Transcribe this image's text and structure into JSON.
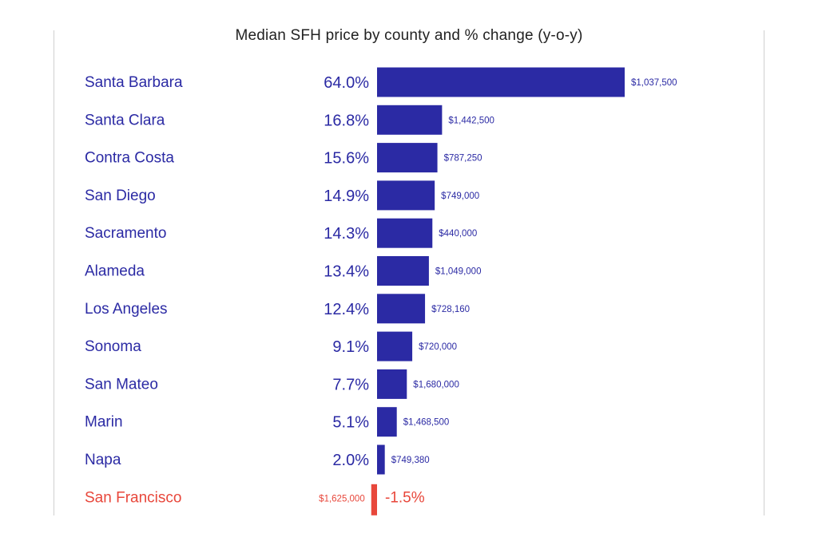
{
  "colors": {
    "positive": "#2b2aa4",
    "negative": "#e8473b",
    "title": "#222222",
    "frame": "#cfcfcf"
  },
  "chart_data": {
    "type": "bar",
    "orientation": "horizontal",
    "title": "Median SFH price by county and % change (y-o-y)",
    "categories": [
      "Santa Barbara",
      "Santa Clara",
      "Contra Costa",
      "San Diego",
      "Sacramento",
      "Alameda",
      "Los Angeles",
      "Sonoma",
      "San Mateo",
      "Marin",
      "Napa",
      "San Francisco"
    ],
    "values": [
      64.0,
      16.8,
      15.6,
      14.9,
      14.3,
      13.4,
      12.4,
      9.1,
      7.7,
      5.1,
      2.0,
      -1.5
    ],
    "value_labels": [
      "64.0%",
      "16.8%",
      "15.6%",
      "14.9%",
      "14.3%",
      "13.4%",
      "12.4%",
      "9.1%",
      "7.7%",
      "5.1%",
      "2.0%",
      "-1.5%"
    ],
    "price_labels": [
      "$1,037,500",
      "$1,442,500",
      "$787,250",
      "$749,000",
      "$440,000",
      "$1,049,000",
      "$728,160",
      "$720,000",
      "$1,680,000",
      "$1,468,500",
      "$749,380",
      "$1,625,000"
    ],
    "grid": false,
    "legend": "none"
  }
}
